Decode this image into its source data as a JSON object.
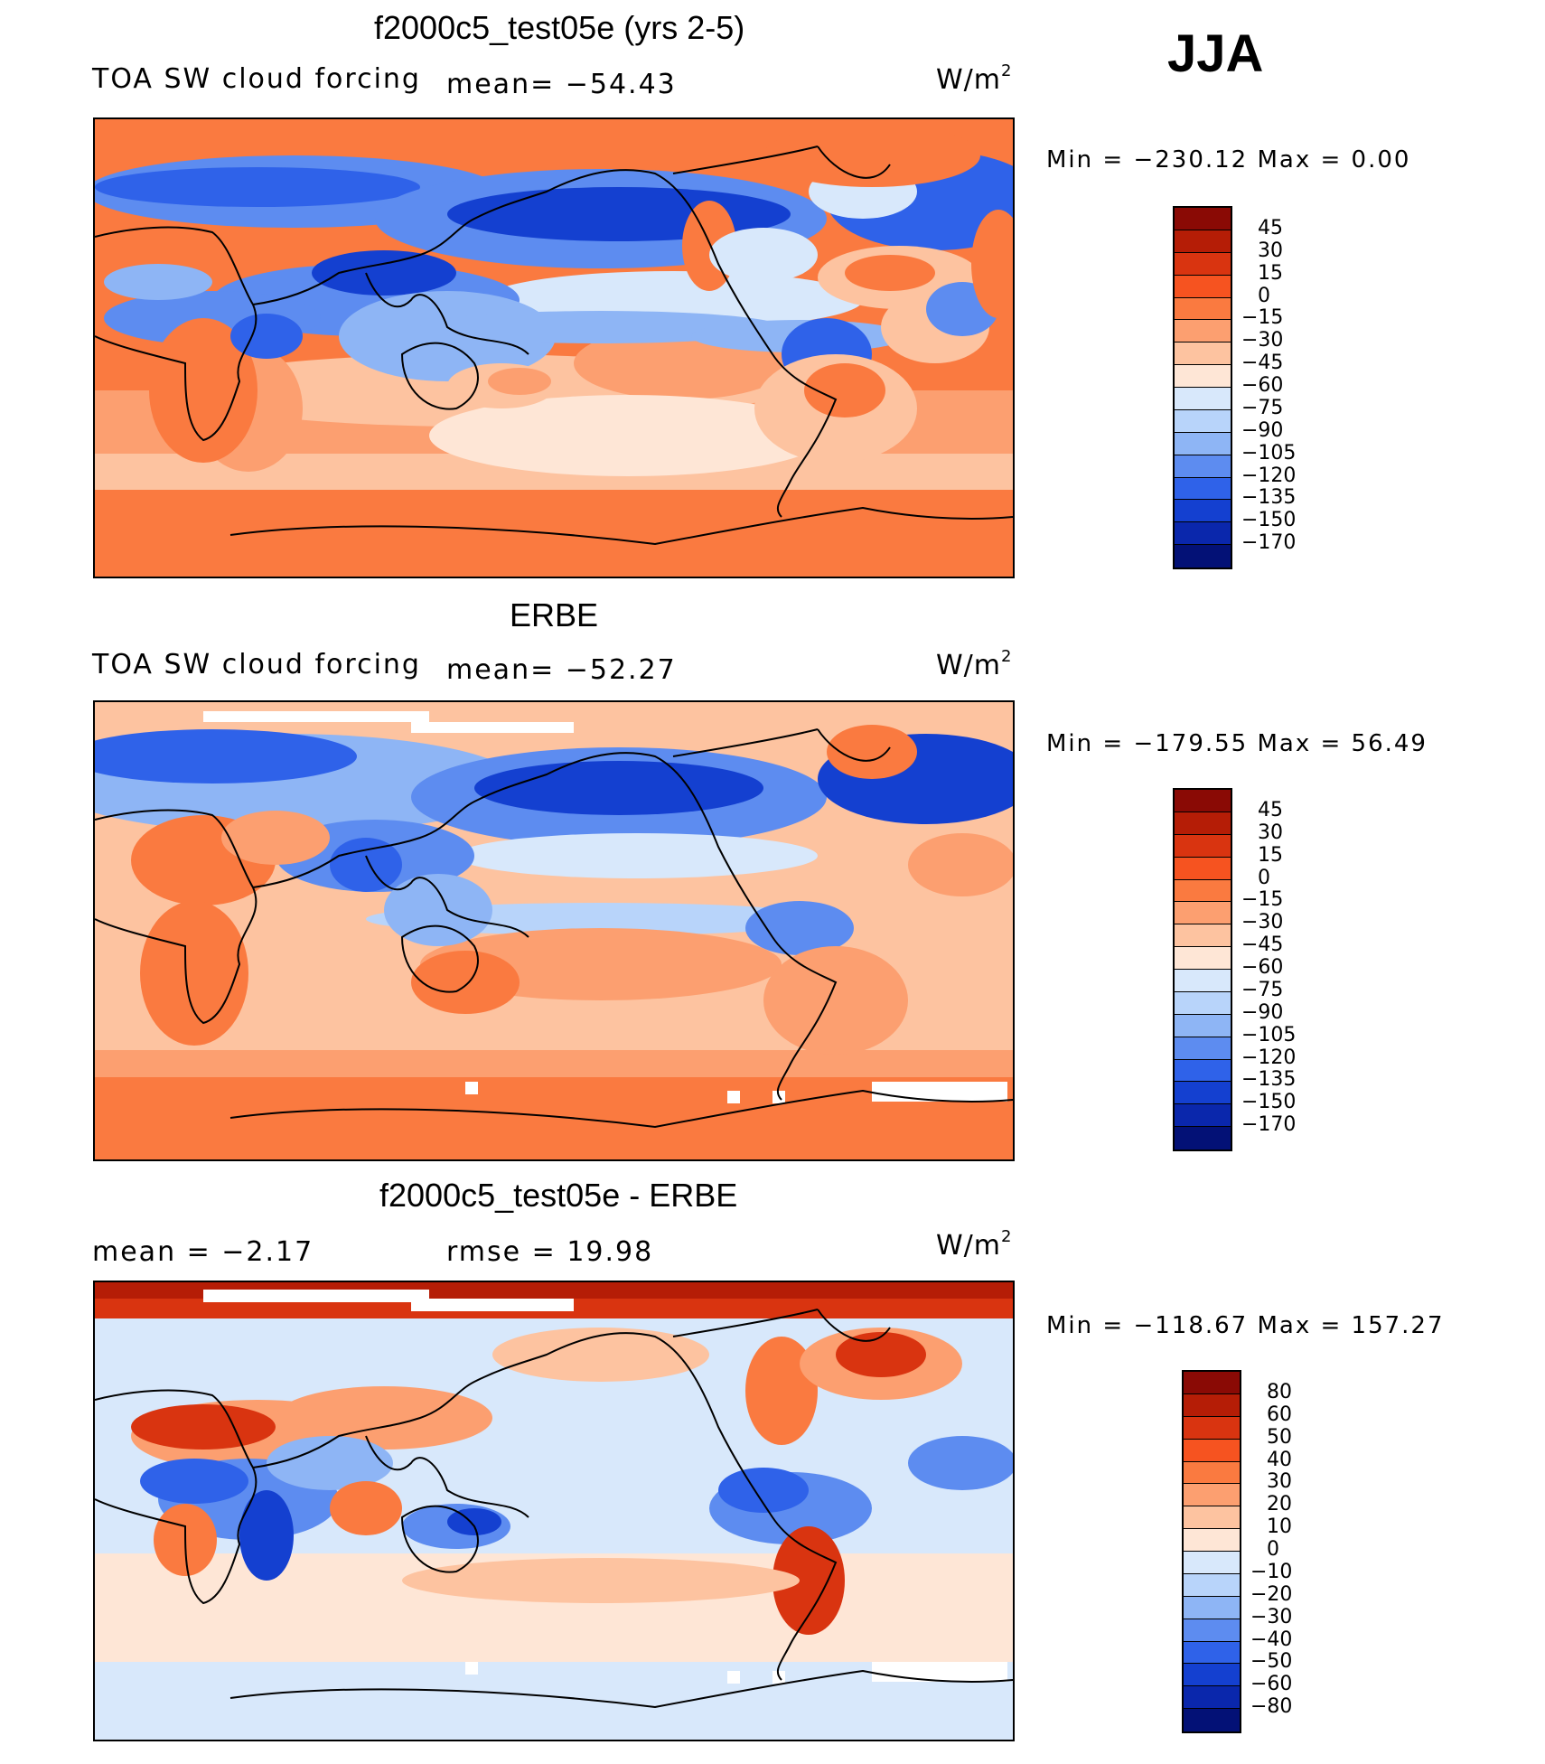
{
  "season": "JJA",
  "panels": [
    {
      "title": "f2000c5_test05e (yrs 2-5)",
      "left_text": "TOA SW cloud forcing",
      "mid_text": "mean= −54.43",
      "units": "W/m",
      "units_sup": "2",
      "minmax": "Min = −230.12 Max =   0.00",
      "colorbar": {
        "labels": [
          "45",
          "30",
          "15",
          "0",
          "−15",
          "−30",
          "−45",
          "−60",
          "−75",
          "−90",
          "−105",
          "−120",
          "−135",
          "−150",
          "−170"
        ],
        "colors": [
          "#8a0a05",
          "#b51d06",
          "#d93410",
          "#f65320",
          "#fa7a40",
          "#fc9f70",
          "#fdc3a0",
          "#fee6d6",
          "#d8e8fb",
          "#b8d4fa",
          "#8eb5f5",
          "#5d8cf0",
          "#2f62e9",
          "#1440d0",
          "#0a27ac",
          "#031176"
        ]
      }
    },
    {
      "title": "ERBE",
      "left_text": "TOA SW cloud forcing",
      "mid_text": "mean= −52.27",
      "units": "W/m",
      "units_sup": "2",
      "minmax": "Min = −179.55 Max =  56.49",
      "colorbar": {
        "labels": [
          "45",
          "30",
          "15",
          "0",
          "−15",
          "−30",
          "−45",
          "−60",
          "−75",
          "−90",
          "−105",
          "−120",
          "−135",
          "−150",
          "−170"
        ],
        "colors": [
          "#8a0a05",
          "#b51d06",
          "#d93410",
          "#f65320",
          "#fa7a40",
          "#fc9f70",
          "#fdc3a0",
          "#fee6d6",
          "#d8e8fb",
          "#b8d4fa",
          "#8eb5f5",
          "#5d8cf0",
          "#2f62e9",
          "#1440d0",
          "#0a27ac",
          "#031176"
        ]
      }
    },
    {
      "title": "f2000c5_test05e - ERBE",
      "left_text": "mean =   −2.17",
      "mid_text": "rmse =   19.98",
      "units": "W/m",
      "units_sup": "2",
      "minmax": "Min = −118.67 Max = 157.27",
      "colorbar": {
        "labels": [
          "80",
          "60",
          "50",
          "40",
          "30",
          "20",
          "10",
          "0",
          "−10",
          "−20",
          "−30",
          "−40",
          "−50",
          "−60",
          "−80"
        ],
        "colors": [
          "#8a0a05",
          "#b51d06",
          "#d93410",
          "#f65320",
          "#fa7a40",
          "#fc9f70",
          "#fdc3a0",
          "#fee6d6",
          "#d8e8fb",
          "#b8d4fa",
          "#8eb5f5",
          "#5d8cf0",
          "#2f62e9",
          "#1440d0",
          "#0a27ac",
          "#031176"
        ]
      }
    }
  ]
}
